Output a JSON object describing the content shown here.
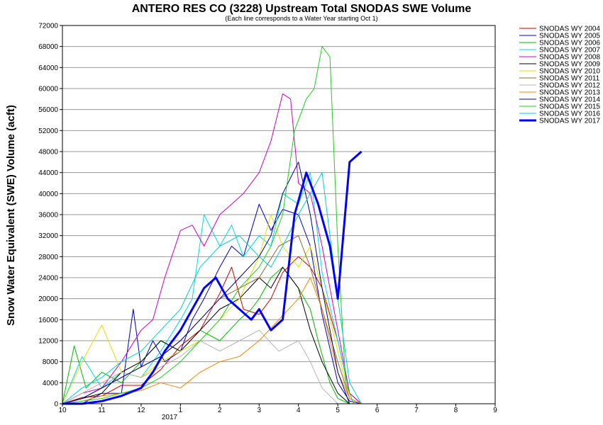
{
  "chart_data": {
    "type": "line",
    "title": "ANTERO RES CO (3228) Upstream Total SNODAS SWE Volume",
    "subtitle": "(Each line corresponds to a Water Year starting Oct 1)",
    "ylabel": "Snow Water Equivalent (SWE) Volume (acft)",
    "xlabel": "",
    "x_ticks": [
      "10",
      "11",
      "12",
      "1",
      "2",
      "3",
      "4",
      "5",
      "6",
      "7",
      "8",
      "9"
    ],
    "x_year_label": "2017",
    "xlim": [
      10,
      21.0
    ],
    "ylim": [
      0,
      72000
    ],
    "y_ticks": [
      0,
      4000,
      8000,
      12000,
      16000,
      20000,
      24000,
      28000,
      32000,
      36000,
      40000,
      44000,
      48000,
      52000,
      56000,
      60000,
      64000,
      68000,
      72000
    ],
    "grid": "horizontal",
    "legend_position": "right",
    "series": [
      {
        "name": "SNODAS WY 2004",
        "color": "#d00000",
        "width": 1,
        "x": [
          10.0,
          10.5,
          11.0,
          11.5,
          12.0,
          12.5,
          13.0,
          13.5,
          14.0,
          14.3,
          14.6,
          15.0,
          15.3,
          15.6,
          16.0,
          16.3,
          16.6,
          17.0,
          17.3,
          17.6,
          18.0
        ],
        "y": [
          0,
          1200,
          1500,
          3500,
          3500,
          6500,
          11000,
          14000,
          21000,
          26000,
          18000,
          17000,
          20000,
          25000,
          28000,
          26000,
          22000,
          12000,
          2000,
          0,
          0
        ]
      },
      {
        "name": "SNODAS WY 2005",
        "color": "#0000cc",
        "width": 1,
        "x": [
          10.0,
          10.5,
          11.0,
          11.5,
          11.8,
          12.0,
          12.3,
          12.6,
          13.0,
          13.3,
          13.6,
          14.0,
          14.3,
          14.6,
          15.0,
          15.3,
          15.6,
          16.0,
          16.3,
          16.6,
          17.0,
          17.3,
          17.6,
          18.0
        ],
        "y": [
          0,
          0,
          2000,
          2000,
          18000,
          7000,
          12000,
          8000,
          10000,
          16000,
          20000,
          26000,
          30000,
          28000,
          38000,
          33000,
          37000,
          36000,
          30000,
          17000,
          4000,
          500,
          0,
          0
        ]
      },
      {
        "name": "SNODAS WY 2006",
        "color": "#00bb00",
        "width": 1,
        "x": [
          10.0,
          10.3,
          10.6,
          11.0,
          11.5,
          12.0,
          12.5,
          13.0,
          13.5,
          14.0,
          14.5,
          14.8,
          15.0,
          15.3,
          15.6,
          16.0,
          16.3,
          16.5,
          16.8,
          17.0,
          17.3,
          17.6,
          18.0
        ],
        "y": [
          0,
          11000,
          3000,
          6000,
          4000,
          8000,
          12000,
          10000,
          14000,
          12000,
          16000,
          18000,
          20000,
          24000,
          26000,
          22000,
          18000,
          12000,
          4000,
          1000,
          0,
          0,
          0
        ]
      },
      {
        "name": "SNODAS WY 2007",
        "color": "#00dddd",
        "width": 1,
        "x": [
          10.0,
          10.5,
          11.0,
          11.5,
          12.0,
          12.5,
          13.0,
          13.3,
          13.6,
          14.0,
          14.3,
          14.6,
          15.0,
          15.3,
          15.6,
          16.0,
          16.3,
          16.6,
          17.0,
          17.3,
          17.6,
          18.0
        ],
        "y": [
          0,
          9000,
          3000,
          6000,
          5000,
          10000,
          16000,
          20000,
          36000,
          30000,
          34000,
          28000,
          32000,
          30000,
          40000,
          38000,
          44000,
          25000,
          12000,
          2000,
          0,
          0
        ]
      },
      {
        "name": "SNODAS WY 2008",
        "color": "#cc00cc",
        "width": 1,
        "x": [
          10.0,
          10.5,
          11.0,
          11.5,
          12.0,
          12.3,
          12.6,
          13.0,
          13.3,
          13.6,
          14.0,
          14.3,
          14.6,
          15.0,
          15.3,
          15.6,
          15.8,
          16.0,
          16.3,
          16.6,
          17.0,
          17.3,
          17.6,
          18.0
        ],
        "y": [
          0,
          2000,
          3000,
          8000,
          14000,
          16000,
          24000,
          33000,
          34000,
          30000,
          36000,
          38000,
          40000,
          44000,
          50000,
          59000,
          58000,
          42000,
          40000,
          30000,
          14000,
          2000,
          0,
          0
        ]
      },
      {
        "name": "SNODAS WY 2009",
        "color": "#000000",
        "width": 1,
        "x": [
          10.0,
          10.5,
          11.0,
          11.5,
          12.0,
          12.5,
          13.0,
          13.5,
          14.0,
          14.5,
          15.0,
          15.3,
          15.6,
          16.0,
          16.3,
          16.6,
          17.0,
          17.3,
          17.6,
          18.0
        ],
        "y": [
          0,
          1000,
          2000,
          6000,
          8000,
          12000,
          10000,
          14000,
          18000,
          20000,
          24000,
          22000,
          26000,
          22000,
          14000,
          8000,
          2000,
          0,
          0,
          0
        ]
      },
      {
        "name": "SNODAS WY 2010",
        "color": "#e0e000",
        "width": 1,
        "x": [
          10.0,
          10.5,
          11.0,
          11.5,
          12.0,
          12.5,
          13.0,
          13.5,
          14.0,
          14.5,
          15.0,
          15.3,
          15.6,
          16.0,
          16.3,
          16.6,
          17.0,
          17.3,
          17.6,
          18.0
        ],
        "y": [
          0,
          8000,
          15000,
          6000,
          5000,
          8000,
          10000,
          12000,
          16000,
          20000,
          28000,
          36000,
          30000,
          26000,
          30000,
          22000,
          10000,
          1000,
          0,
          0
        ]
      },
      {
        "name": "SNODAS WY 2011",
        "color": "#996633",
        "width": 1,
        "x": [
          10.0,
          10.5,
          11.0,
          11.5,
          12.0,
          12.5,
          13.0,
          13.5,
          14.0,
          14.5,
          15.0,
          15.5,
          16.0,
          16.3,
          16.6,
          17.0,
          17.3,
          17.6,
          18.0
        ],
        "y": [
          0,
          1000,
          3000,
          5000,
          7000,
          9000,
          12000,
          16000,
          20000,
          22000,
          24000,
          30000,
          32000,
          26000,
          18000,
          8000,
          1000,
          0,
          0
        ]
      },
      {
        "name": "SNODAS WY 2012",
        "color": "#b4b4b4",
        "width": 1,
        "x": [
          10.0,
          10.5,
          11.0,
          11.5,
          12.0,
          12.5,
          13.0,
          13.5,
          14.0,
          14.5,
          15.0,
          15.5,
          16.0,
          16.3,
          16.6,
          17.0,
          17.3,
          18.0
        ],
        "y": [
          0,
          2000,
          4000,
          6000,
          5000,
          7000,
          9000,
          12000,
          10000,
          12000,
          14000,
          10000,
          12000,
          8000,
          3000,
          0,
          0,
          0
        ]
      },
      {
        "name": "SNODAS WY 2013",
        "color": "#ee8800",
        "width": 1,
        "x": [
          10.0,
          10.5,
          11.0,
          11.5,
          12.0,
          12.5,
          13.0,
          13.5,
          14.0,
          14.5,
          15.0,
          15.5,
          16.0,
          16.3,
          16.6,
          17.0,
          17.3,
          17.6,
          18.0
        ],
        "y": [
          0,
          500,
          1500,
          2000,
          2500,
          4000,
          3000,
          6000,
          8000,
          9000,
          12000,
          16000,
          20000,
          24000,
          18000,
          6000,
          1000,
          0,
          0
        ]
      },
      {
        "name": "SNODAS WY 2014",
        "color": "#00008b",
        "width": 1,
        "x": [
          10.0,
          10.5,
          11.0,
          11.5,
          12.0,
          12.5,
          13.0,
          13.5,
          14.0,
          14.5,
          15.0,
          15.3,
          15.6,
          16.0,
          16.3,
          16.6,
          17.0,
          17.3,
          17.6,
          18.0
        ],
        "y": [
          0,
          1000,
          3000,
          5000,
          7000,
          9000,
          12000,
          16000,
          20000,
          24000,
          28000,
          32000,
          40000,
          46000,
          36000,
          22000,
          6000,
          0,
          0,
          0
        ]
      },
      {
        "name": "SNODAS WY 2015",
        "color": "#22cc22",
        "width": 1,
        "x": [
          10.0,
          10.5,
          11.0,
          11.5,
          12.0,
          12.5,
          13.0,
          13.5,
          14.0,
          14.5,
          15.0,
          15.3,
          15.6,
          15.9,
          16.2,
          16.4,
          16.6,
          16.8,
          17.0,
          17.2,
          17.4,
          17.6,
          18.0
        ],
        "y": [
          0,
          500,
          1000,
          2000,
          3000,
          5000,
          8000,
          12000,
          16000,
          22000,
          26000,
          30000,
          36000,
          52000,
          58000,
          60000,
          68000,
          66000,
          30000,
          4000,
          0,
          0,
          0
        ]
      },
      {
        "name": "SNODAS WY 2016",
        "color": "#00d0d0",
        "width": 1,
        "x": [
          10.0,
          10.5,
          11.0,
          11.5,
          12.0,
          12.5,
          13.0,
          13.5,
          14.0,
          14.5,
          15.0,
          15.3,
          15.6,
          16.0,
          16.3,
          16.6,
          17.0,
          17.3,
          17.6,
          18.0
        ],
        "y": [
          0,
          3000,
          5000,
          8000,
          10000,
          14000,
          18000,
          26000,
          30000,
          32000,
          28000,
          26000,
          30000,
          36000,
          40000,
          44000,
          20000,
          4000,
          0,
          0
        ]
      },
      {
        "name": "SNODAS WY 2017",
        "color": "#0000ff",
        "width": 3,
        "x": [
          10.0,
          10.5,
          11.0,
          11.5,
          12.0,
          12.3,
          12.6,
          13.0,
          13.3,
          13.6,
          13.9,
          14.2,
          14.5,
          14.8,
          15.0,
          15.3,
          15.6,
          15.9,
          16.2,
          16.5,
          16.8,
          17.0,
          17.3,
          17.6
        ],
        "y": [
          0,
          0,
          500,
          1500,
          3000,
          6000,
          10000,
          14000,
          18000,
          22000,
          24000,
          20000,
          18000,
          16000,
          18000,
          14000,
          16000,
          36000,
          44000,
          38000,
          30000,
          20000,
          46000,
          48000
        ]
      }
    ]
  }
}
